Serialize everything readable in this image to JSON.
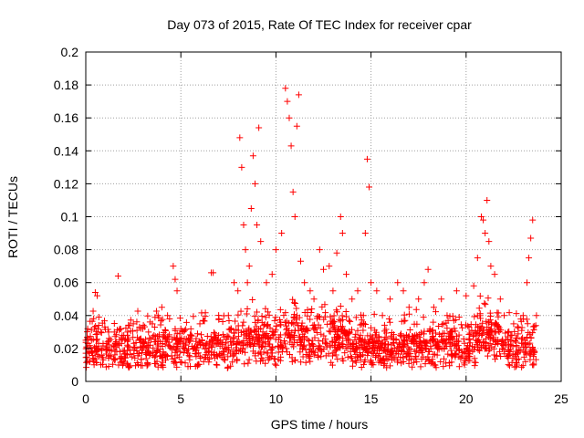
{
  "chart_data": {
    "type": "scatter",
    "title": "Day 073 of 2015, Rate Of TEC Index for receiver cpar",
    "xlabel": "GPS time / hours",
    "ylabel": "ROTI / TECUs",
    "xlim": [
      0,
      25
    ],
    "ylim": [
      0,
      0.2
    ],
    "x_ticks": [
      "0",
      "5",
      "10",
      "15",
      "20",
      "25"
    ],
    "y_ticks": [
      "0",
      "0.02",
      "0.04",
      "0.06",
      "0.08",
      "0.1",
      "0.12",
      "0.14",
      "0.16",
      "0.18",
      "0.2"
    ],
    "x_tick_values": [
      0,
      5,
      10,
      15,
      20,
      25
    ],
    "y_tick_values": [
      0,
      0.02,
      0.04,
      0.06,
      0.08,
      0.1,
      0.12,
      0.14,
      0.16,
      0.18,
      0.2
    ],
    "grid": true,
    "marker": "+",
    "marker_color": "#ff0000",
    "series": [
      {
        "x": [
          0.1,
          0.3,
          0.5,
          0.6,
          0.8,
          1.0,
          1.2,
          1.5,
          1.7,
          2.0,
          2.2,
          2.5,
          3.0,
          3.3,
          3.5,
          3.8,
          4.0,
          4.3,
          4.6,
          4.7,
          4.8,
          5.0,
          5.5,
          6.0,
          6.6,
          6.7,
          7.0,
          7.5,
          7.8,
          8.0,
          8.1,
          8.2,
          8.3,
          8.4,
          8.5,
          8.6,
          8.7,
          8.8,
          8.9,
          9.0,
          9.1,
          9.2,
          9.5,
          9.8,
          10.0,
          10.3,
          10.5,
          10.6,
          10.7,
          10.8,
          10.9,
          11.0,
          11.1,
          11.2,
          11.3,
          11.5,
          11.8,
          12.0,
          12.3,
          12.5,
          12.8,
          13.0,
          13.2,
          13.4,
          13.5,
          13.7,
          14.0,
          14.3,
          14.6,
          14.7,
          14.8,
          14.9,
          15.0,
          15.3,
          15.6,
          16.0,
          16.4,
          16.7,
          17.0,
          17.5,
          17.8,
          18.0,
          18.3,
          18.7,
          19.0,
          19.5,
          20.0,
          20.4,
          20.6,
          20.8,
          20.9,
          21.0,
          21.1,
          21.2,
          21.3,
          21.5,
          21.8,
          22.0,
          22.5,
          23.0,
          23.2,
          23.3,
          23.4,
          23.5,
          23.7
        ],
        "y": [
          0.032,
          0.025,
          0.054,
          0.052,
          0.03,
          0.033,
          0.03,
          0.03,
          0.064,
          0.028,
          0.03,
          0.035,
          0.032,
          0.03,
          0.035,
          0.04,
          0.045,
          0.04,
          0.07,
          0.062,
          0.055,
          0.032,
          0.025,
          0.035,
          0.066,
          0.066,
          0.038,
          0.04,
          0.06,
          0.055,
          0.148,
          0.13,
          0.095,
          0.08,
          0.06,
          0.07,
          0.105,
          0.137,
          0.12,
          0.095,
          0.154,
          0.085,
          0.06,
          0.065,
          0.08,
          0.09,
          0.178,
          0.17,
          0.16,
          0.143,
          0.115,
          0.1,
          0.155,
          0.174,
          0.073,
          0.06,
          0.055,
          0.05,
          0.08,
          0.068,
          0.07,
          0.055,
          0.078,
          0.1,
          0.09,
          0.065,
          0.05,
          0.055,
          0.04,
          0.09,
          0.135,
          0.118,
          0.06,
          0.055,
          0.04,
          0.05,
          0.06,
          0.055,
          0.045,
          0.05,
          0.06,
          0.068,
          0.045,
          0.05,
          0.04,
          0.055,
          0.052,
          0.058,
          0.075,
          0.1,
          0.098,
          0.09,
          0.11,
          0.085,
          0.07,
          0.065,
          0.05,
          0.04,
          0.035,
          0.04,
          0.06,
          0.075,
          0.087,
          0.098,
          0.04
        ]
      }
    ]
  }
}
